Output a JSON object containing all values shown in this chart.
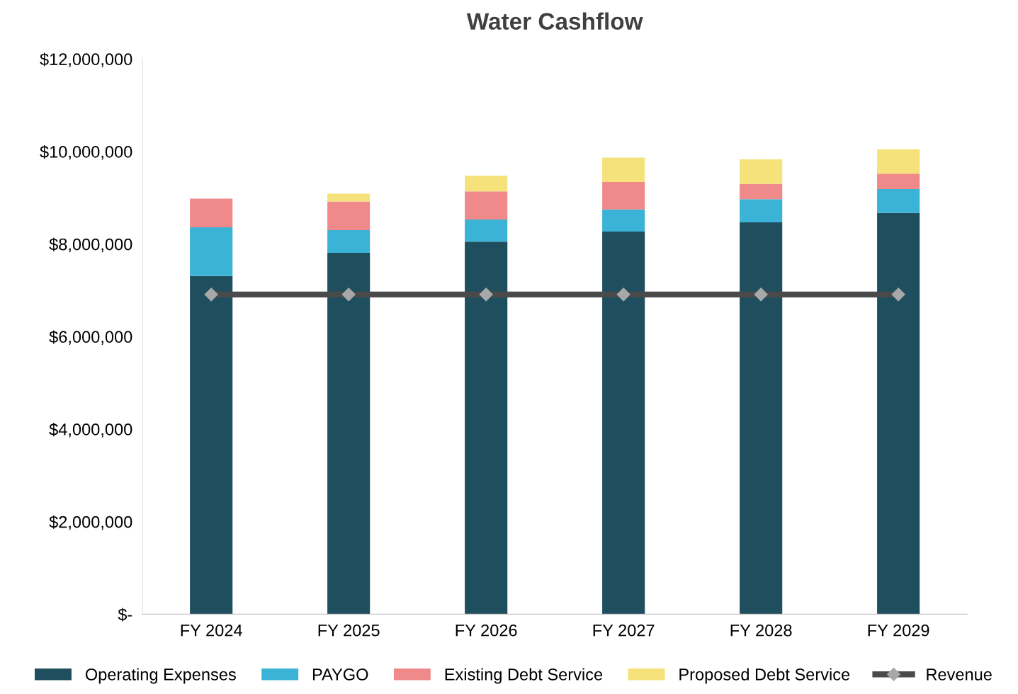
{
  "chart_data": {
    "type": "bar",
    "title": "Water Cashflow",
    "stacked": true,
    "categories": [
      "FY 2024",
      "FY 2025",
      "FY 2026",
      "FY 2027",
      "FY 2028",
      "FY 2029"
    ],
    "series": [
      {
        "name": "Operating Expenses",
        "color": "#1f4e5f",
        "values": [
          7310000,
          7810000,
          8050000,
          8270000,
          8470000,
          8670000
        ]
      },
      {
        "name": "PAYGO",
        "color": "#3bb3d6",
        "values": [
          1050000,
          490000,
          480000,
          480000,
          500000,
          520000
        ]
      },
      {
        "name": "Existing Debt Service",
        "color": "#f08a8a",
        "values": [
          620000,
          620000,
          610000,
          590000,
          330000,
          330000
        ]
      },
      {
        "name": "Proposed Debt Service",
        "color": "#f5e27a",
        "values": [
          0,
          170000,
          340000,
          530000,
          530000,
          530000
        ]
      },
      {
        "name": "Revenue",
        "type": "line",
        "color": "#4a4a4a",
        "marker": "diamond",
        "values": [
          6910000,
          6910000,
          6910000,
          6910000,
          6910000,
          6910000
        ]
      }
    ],
    "ylim": [
      0,
      12000000
    ],
    "yticks": [
      {
        "value": 0,
        "label": "$-"
      },
      {
        "value": 2000000,
        "label": "$2,000,000"
      },
      {
        "value": 4000000,
        "label": "$4,000,000"
      },
      {
        "value": 6000000,
        "label": "$6,000,000"
      },
      {
        "value": 8000000,
        "label": "$8,000,000"
      },
      {
        "value": 10000000,
        "label": "$10,000,000"
      },
      {
        "value": 12000000,
        "label": "$12,000,000"
      }
    ],
    "grid": false,
    "legend": "bottom"
  }
}
